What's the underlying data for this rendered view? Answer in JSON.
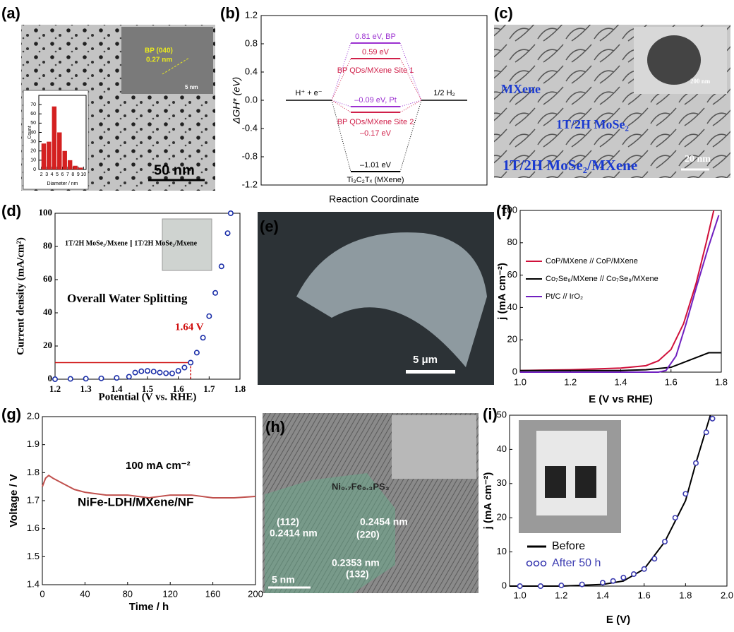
{
  "panel_labels": [
    "(a)",
    "(b)",
    "(c)",
    "(d)",
    "(e)",
    "(f)",
    "(g)",
    "(h)",
    "(i)"
  ],
  "images": {
    "a": [
      "BP (040)",
      "0.27 nm",
      "5 nm",
      "50 nm"
    ],
    "c": [
      "MXene",
      "1T/2H MoSe₂",
      "1T/2H MoSe₂/MXene",
      "200 nm",
      "20 nm"
    ],
    "e": [
      "5 μm"
    ],
    "h": [
      "Ni₀.₇Fe₀.₃PS₃",
      "(112)",
      "0.2414 nm",
      "0.2454 nm",
      "(220)",
      "0.2353 nm",
      "(132)",
      "5 nm"
    ]
  },
  "chart_data": [
    {
      "type": "histogram",
      "xlabel": "Diameter / nm",
      "ylabel": "Count",
      "bins": [
        2,
        3,
        4,
        5,
        6,
        7,
        8,
        9,
        10
      ],
      "values": [
        28,
        30,
        68,
        40,
        20,
        10,
        4,
        2
      ],
      "color": "#d42020",
      "xlim": [
        1.5,
        10.5
      ],
      "xticks": [
        2,
        3,
        4,
        5,
        6,
        7,
        8,
        9,
        10
      ],
      "ylim": [
        0,
        80
      ],
      "yticks": [
        0,
        10,
        20,
        30,
        40,
        50,
        60,
        70
      ]
    },
    {
      "type": "energy_diagram",
      "xlabel": "Reaction Coordinate",
      "ylabel": "ΔGH* (eV)",
      "ylim": [
        -1.2,
        1.2
      ],
      "yticks": [
        -1.2,
        -0.8,
        -0.4,
        {
          "value": 0,
          "label": "0.0"
        },
        0.4,
        0.8,
        1.2
      ],
      "states": [
        {
          "label": "H⁺ + e⁻",
          "value": 0
        },
        {
          "label": "1/2 H₂",
          "value": 0
        }
      ],
      "levels": [
        {
          "label": "0.81 eV, BP",
          "value": 0.81,
          "color": "#9b30d0"
        },
        {
          "label": "0.59 eV",
          "value": 0.59,
          "color": "#d0204a"
        },
        {
          "label": "–0.09 eV, Pt",
          "value": -0.09,
          "color": "#9b30d0"
        },
        {
          "label": "–0.17 eV",
          "value": -0.17,
          "color": "#d0204a"
        },
        {
          "label": "–1.01 eV",
          "value": -1.01,
          "color": "#000000"
        }
      ],
      "annotations": [
        "BP QDs/MXene Site 1",
        "BP QDs/MXene Site 2",
        "Ti₃C₂Tₓ (MXene)"
      ]
    },
    {
      "type": "line",
      "xlabel": "Potential (V vs. RHE)",
      "ylabel": "Current density (mA/cm²)",
      "xlim": [
        1.2,
        1.8
      ],
      "xticks": [
        1.2,
        1.3,
        1.4,
        1.5,
        1.6,
        1.7,
        1.8
      ],
      "ylim": [
        0,
        100
      ],
      "yticks": [
        0,
        20,
        40,
        60,
        80,
        100
      ],
      "series": [
        {
          "name": "1T/2H MoSe₂/Mxene || 1T/2H MoSe₂/Mxene",
          "color": "#1a2ea8",
          "style": "markers",
          "x": [
            1.2,
            1.25,
            1.3,
            1.35,
            1.4,
            1.44,
            1.46,
            1.48,
            1.5,
            1.52,
            1.54,
            1.56,
            1.58,
            1.6,
            1.62,
            1.64,
            1.66,
            1.68,
            1.7,
            1.72,
            1.74,
            1.76,
            1.77
          ],
          "values": [
            0,
            0.2,
            0.3,
            0.5,
            0.8,
            1.5,
            4,
            4.8,
            5,
            4.6,
            4,
            3.6,
            3.5,
            5,
            7,
            10,
            16,
            25,
            38,
            52,
            68,
            88,
            100
          ]
        }
      ],
      "annotations": [
        "Overall Water Splitting"
      ],
      "reference": {
        "x": 1.64,
        "y": 10,
        "label": "1.64 V",
        "color": "#d01010"
      }
    },
    {
      "type": "line",
      "xlabel": "E (V vs RHE)",
      "ylabel": "j (mA cm⁻²)",
      "xlim": [
        1.0,
        1.8
      ],
      "xticks": [
        {
          "value": 1,
          "label": "1.0"
        },
        1.2,
        1.4,
        1.6,
        1.8
      ],
      "ylim": [
        0,
        100
      ],
      "yticks": [
        0,
        20,
        40,
        60,
        80,
        100
      ],
      "legend": "center-left",
      "series": [
        {
          "name": "CoP/MXene // CoP/MXene",
          "color": "#d0103a",
          "x": [
            1.0,
            1.2,
            1.4,
            1.5,
            1.55,
            1.6,
            1.65,
            1.7,
            1.74,
            1.77
          ],
          "values": [
            1,
            1.5,
            2.5,
            4,
            7,
            14,
            30,
            55,
            80,
            100
          ]
        },
        {
          "name": "Co₇Se₈/MXene // Co₇Se₈/MXene",
          "color": "#000000",
          "x": [
            1.0,
            1.2,
            1.4,
            1.5,
            1.6,
            1.65,
            1.7,
            1.75,
            1.8
          ],
          "values": [
            1,
            1,
            1,
            1.5,
            3,
            6,
            9,
            12,
            12
          ]
        },
        {
          "name": "Pt/C // IrO₂",
          "color": "#7020c0",
          "x": [
            1.0,
            1.2,
            1.4,
            1.55,
            1.58,
            1.62,
            1.66,
            1.7,
            1.75,
            1.79
          ],
          "values": [
            0,
            0,
            0,
            0,
            1,
            10,
            30,
            52,
            78,
            97
          ]
        }
      ]
    },
    {
      "type": "line",
      "xlabel": "Time / h",
      "ylabel": "Voltage / V",
      "xlim": [
        0,
        200
      ],
      "xticks": [
        0,
        40,
        80,
        120,
        160,
        200
      ],
      "ylim": [
        1.4,
        2.0
      ],
      "yticks": [
        1.4,
        1.5,
        1.6,
        1.7,
        1.8,
        1.9,
        {
          "value": 2,
          "label": "2.0"
        }
      ],
      "color": "#c0504d",
      "x": [
        0,
        3,
        6,
        10,
        20,
        30,
        40,
        60,
        80,
        100,
        120,
        140,
        160,
        180,
        200
      ],
      "values": [
        1.75,
        1.78,
        1.79,
        1.78,
        1.76,
        1.74,
        1.73,
        1.72,
        1.72,
        1.71,
        1.72,
        1.72,
        1.71,
        1.71,
        1.715
      ],
      "annotations": [
        "100 mA cm⁻²",
        "NiFe-LDH/MXene/NF"
      ]
    },
    {
      "type": "line",
      "xlabel": "E (V)",
      "ylabel": "j (mA cm⁻²)",
      "xlim": [
        0.95,
        2.0
      ],
      "xticks": [
        {
          "value": 1,
          "label": "1.0"
        },
        1.2,
        1.4,
        1.6,
        1.8,
        {
          "value": 2,
          "label": "2.0"
        }
      ],
      "ylim": [
        0,
        50
      ],
      "yticks": [
        0,
        10,
        20,
        30,
        40,
        50
      ],
      "legend": "lower-left",
      "series": [
        {
          "name": "Before",
          "color": "#000000",
          "x": [
            0.95,
            1.2,
            1.4,
            1.5,
            1.6,
            1.7,
            1.8,
            1.85,
            1.9,
            1.92
          ],
          "values": [
            0,
            0,
            0.5,
            1.5,
            5,
            13,
            25,
            36,
            46,
            50
          ]
        },
        {
          "name": "After 50 h",
          "color": "#3a3ab0",
          "style": "markers",
          "x": [
            1.0,
            1.1,
            1.2,
            1.3,
            1.4,
            1.45,
            1.5,
            1.55,
            1.6,
            1.65,
            1.7,
            1.75,
            1.8,
            1.85,
            1.9,
            1.93
          ],
          "values": [
            0,
            0,
            0.2,
            0.5,
            1,
            1.5,
            2.5,
            3.5,
            5,
            8,
            13,
            20,
            27,
            36,
            45,
            49
          ]
        }
      ]
    }
  ]
}
